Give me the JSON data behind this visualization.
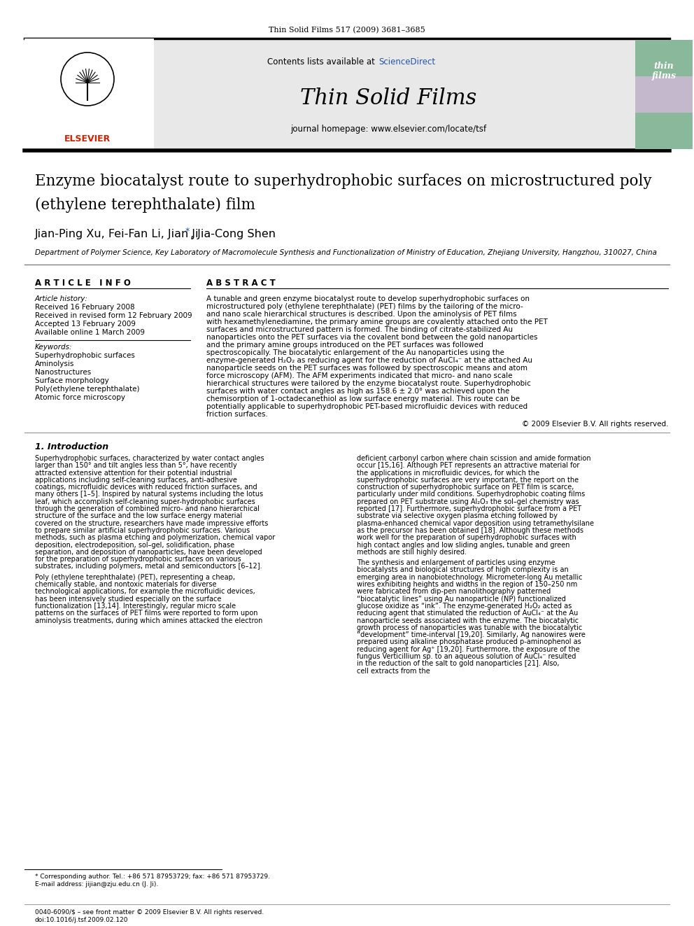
{
  "journal_header": "Thin Solid Films 517 (2009) 3681–3685",
  "contents_text": "Contents lists available at",
  "sciencedirect_text": "ScienceDirect",
  "journal_title": "Thin Solid Films",
  "journal_homepage": "journal homepage: www.elsevier.com/locate/tsf",
  "paper_title_line1": "Enzyme biocatalyst route to superhydrophobic surfaces on microstructured poly",
  "paper_title_line2": "(ethylene terephthalate) film",
  "authors": "Jian-Ping Xu, Fei-Fan Li, Jian Ji",
  "author_star": "*",
  "author_last": ", Jia-Cong Shen",
  "affiliation": "Department of Polymer Science, Key Laboratory of Macromolecule Synthesis and Functionalization of Ministry of Education, Zhejiang University, Hangzhou, 310027, China",
  "article_info_label": "A R T I C L E   I N F O",
  "abstract_label": "A B S T R A C T",
  "article_history_label": "Article history:",
  "history_lines": [
    "Received 16 February 2008",
    "Received in revised form 12 February 2009",
    "Accepted 13 February 2009",
    "Available online 1 March 2009"
  ],
  "keywords_label": "Keywords:",
  "keywords": [
    "Superhydrophobic surfaces",
    "Aminolysis",
    "Nanostructures",
    "Surface morphology",
    "Poly(ethylene terephthalate)",
    "Atomic force microscopy"
  ],
  "abstract_text": "A tunable and green enzyme biocatalyst route to develop superhydrophobic surfaces on microstructured poly (ethylene terephthalate) (PET) films by the tailoring of the micro- and nano scale hierarchical structures is described. Upon the aminolysis of PET films with hexamethylenediamine, the primary amine groups are covalently attached onto the PET surfaces and microstructured pattern is formed. The binding of citrate-stabilized Au nanoparticles onto the PET surfaces via the covalent bond between the gold nanoparticles and the primary amine groups introduced on the PET surfaces was followed spectroscopically. The biocatalytic enlargement of the Au nanoparticles using the enzyme-generated H₂O₂ as reducing agent for the reduction of AuCl₄⁻ at the attached Au nanoparticle seeds on the PET surfaces was followed by spectroscopic means and atom force microscopy (AFM). The AFM experiments indicated that micro- and nano scale hierarchical structures were tailored by the enzyme biocatalyst route. Superhydrophobic surfaces with water contact angles as high as 158.6 ± 2.0° was achieved upon the chemisorption of 1-octadecanethiol as low surface energy material. This route can be potentially applicable to superhydrophobic PET-based microfluidic devices with reduced friction surfaces.",
  "copyright_text": "© 2009 Elsevier B.V. All rights reserved.",
  "intro_heading": "1. Introduction",
  "intro_text_col1": "Superhydrophobic surfaces, characterized by water contact angles larger than 150° and tilt angles less than 5°, have recently attracted extensive attention for their potential industrial applications including self-cleaning surfaces, anti-adhesive coatings, microfluidic devices with reduced friction surfaces, and many others [1–5]. Inspired by natural systems including the lotus leaf, which accomplish self-cleaning super-hydrophobic surfaces through the generation of combined micro- and nano hierarchical structure of the surface and the low surface energy material covered on the structure, researchers have made impressive efforts to prepare similar artificial superhydrophobic surfaces. Various methods, such as plasma etching and polymerization, chemical vapor deposition, electrodeposition, sol–gel, solidification, phase separation, and deposition of nanoparticles, have been developed for the preparation of superhydrophobic surfaces on various substrates, including polymers, metal and semiconductors [6–12].\n\nPoly (ethylene terephthalate) (PET), representing a cheap, chemically stable, and nontoxic materials for diverse technological applications, for example the microfluidic devices, has been intensively studied especially on the surface functionalization [13,14]. Interestingly, regular micro scale patterns on the surfaces of PET films were reported to form upon aminolysis treatments, during which amines attacked the electron",
  "intro_text_col2": "deficient carbonyl carbon where chain scission and amide formation occur [15,16]. Although PET represents an attractive material for the applications in microfluidic devices, for which the superhydrophobic surfaces are very important, the report on the construction of superhydrophobic surface on PET film is scarce, particularly under mild conditions. Superhydrophobic coating films prepared on PET substrate using Al₂O₃ the sol–gel chemistry was reported [17]. Furthermore, superhydrophobic surface from a PET substrate via selective oxygen plasma etching followed by plasma-enhanced chemical vapor deposition using tetramethylsilane as the precursor has been obtained [18]. Although these methods work well for the preparation of superhydrophobic surfaces with high contact angles and low sliding angles, tunable and green methods are still highly desired.\n\nThe synthesis and enlargement of particles using enzyme biocatalysts and biological structures of high complexity is an emerging area in nanobiotechnology. Micrometer-long Au metallic wires exhibiting heights and widths in the region of 150–250 nm were fabricated from dip-pen nanolithography patterned “biocatalytic lines” using Au nanoparticle (NP) functionalized glucose oxidize as “ink”. The enzyme-generated H₂O₂ acted as reducing agent that stimulated the reduction of AuCl₄⁻ at the Au nanoparticle seeds associated with the enzyme. The biocatalytic growth process of nanoparticles was tunable with the biocatalytic “development” time-interval [19,20]. Similarly, Ag nanowires were prepared using alkaline phosphatase produced p-aminophenol as reducing agent for Ag⁺ [19,20]. Furthermore, the exposure of the fungus Verticillium sp. to an aqueous solution of AuCl₄⁻ resulted in the reduction of the salt to gold nanoparticles [21]. Also, cell extracts from the",
  "footnote_star": "* Corresponding author. Tel.: +86 571 87953729; fax: +86 571 87953729.",
  "footnote_email": "E-mail address: jijian@zju.edu.cn (J. Ji).",
  "footer_left": "0040-6090/$ – see front matter © 2009 Elsevier B.V. All rights reserved.",
  "footer_doi": "doi:10.1016/j.tsf.2009.02.120",
  "header_bg": "#e8e8e8",
  "journal_cover_colors": [
    "#8ab89a",
    "#c4b8cc",
    "#8ab89a"
  ],
  "border_color": "#1a1a1a",
  "sciencedirect_color": "#2255aa",
  "elsevier_color": "#cc2200",
  "title_fontsize": 15,
  "authors_fontsize": 12,
  "section_fontsize": 8,
  "body_fontsize": 7
}
